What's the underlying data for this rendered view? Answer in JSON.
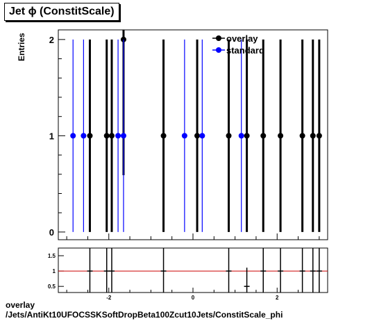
{
  "title": "Jet ϕ (ConstitScale)",
  "caption_line1": "overlay",
  "caption_line2": "/Jets/AntiKt10UFOCSSKSoftDropBeta100Zcut10Jets/ConstitScale_phi",
  "colors": {
    "overlay": "#000000",
    "standard": "#0000ff",
    "ratio_line": "#cc0000"
  },
  "chart_data": [
    {
      "type": "scatter",
      "ylabel": "Entries",
      "xlim": [
        -3.2,
        3.2
      ],
      "ylim": [
        -0.08,
        2.1
      ],
      "y_ticks": [
        0,
        1,
        2
      ],
      "legend_position": "top-right",
      "series": [
        {
          "name": "overlay",
          "color": "#000000",
          "x": [
            -2.45,
            -2.05,
            -1.93,
            -1.65,
            -0.7,
            0.1,
            0.85,
            1.28,
            1.67,
            2.08,
            2.6,
            2.85,
            3.0
          ],
          "y": [
            1,
            1,
            1,
            2,
            1,
            1,
            1,
            1,
            1,
            1,
            1,
            1,
            1
          ],
          "y_err": [
            1,
            1,
            1,
            1.41,
            1,
            1,
            1,
            1,
            1,
            1,
            1,
            1,
            1
          ]
        },
        {
          "name": "standard",
          "color": "#0000ff",
          "x": [
            -2.85,
            -2.6,
            -1.78,
            -1.65,
            -0.2,
            0.22,
            1.15
          ],
          "y": [
            1,
            1,
            1,
            1,
            1,
            1,
            1
          ],
          "y_err": [
            1,
            1,
            1,
            1,
            1,
            1,
            1
          ]
        }
      ]
    },
    {
      "type": "scatter",
      "xlim": [
        -3.2,
        3.2
      ],
      "ylim": [
        0.3,
        1.75
      ],
      "x_ticks": [
        -2,
        0,
        2
      ],
      "y_ticks": [
        0.5,
        1,
        1.5
      ],
      "reference_line": 1,
      "x": [
        -2.45,
        -2.05,
        -1.93,
        -0.7,
        0.85,
        1.28,
        1.67,
        2.08,
        2.6,
        2.85,
        3.0
      ],
      "y": [
        1,
        1,
        1,
        1,
        1,
        0.5,
        1,
        1,
        1,
        1,
        1
      ],
      "y_err": [
        1,
        1,
        1,
        1,
        1,
        0.61,
        1,
        1,
        1,
        1,
        1
      ]
    }
  ]
}
